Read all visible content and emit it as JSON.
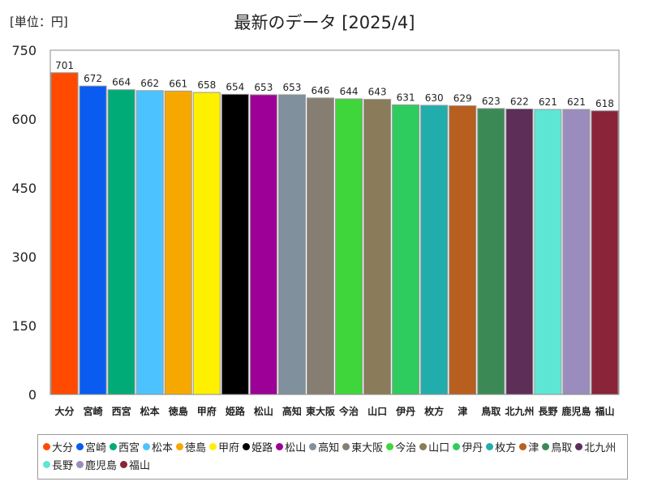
{
  "unit_label": "[単位：円]",
  "title": "最新のデータ [2025/4]",
  "chart_data": {
    "type": "bar",
    "categories": [
      "大分",
      "宮崎",
      "西宮",
      "松本",
      "徳島",
      "甲府",
      "姫路",
      "松山",
      "高知",
      "東大阪",
      "今治",
      "山口",
      "伊丹",
      "枚方",
      "津",
      "鳥取",
      "北九州",
      "長野",
      "鹿児島",
      "福山"
    ],
    "values": [
      701,
      672,
      664,
      662,
      661,
      658,
      654,
      653,
      653,
      646,
      644,
      643,
      631,
      630,
      629,
      623,
      622,
      621,
      621,
      618
    ],
    "colors": [
      "#ff4a00",
      "#0a5cf0",
      "#00ab78",
      "#4cc3ff",
      "#f7a800",
      "#fff000",
      "#000000",
      "#9c0096",
      "#80909c",
      "#877e72",
      "#3fd63c",
      "#8a7c5a",
      "#2ecc5e",
      "#22adad",
      "#b85f1f",
      "#3b8a55",
      "#5c2e58",
      "#5ee6d5",
      "#9a8cbc",
      "#8a2438"
    ],
    "ylim": [
      0,
      750
    ],
    "yticks": [
      0,
      150,
      300,
      450,
      600,
      750
    ],
    "xlabel": "",
    "ylabel": "",
    "grid": false,
    "legend_position": "bottom"
  }
}
